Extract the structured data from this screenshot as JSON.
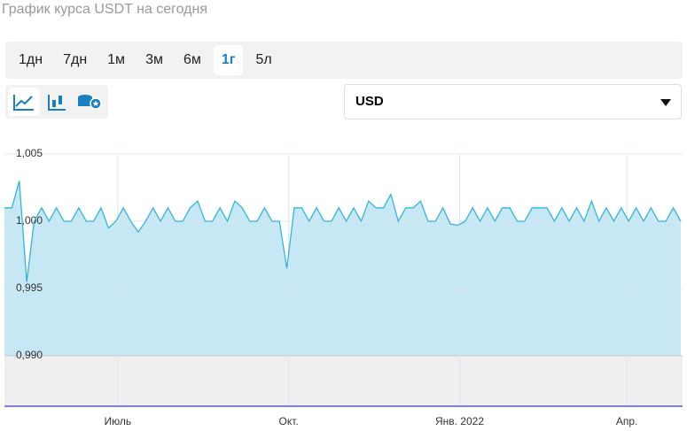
{
  "header": {
    "title": "График курса USDT на сегодня"
  },
  "periods": [
    "1дн",
    "7дн",
    "1м",
    "3м",
    "6м",
    "1г",
    "5л"
  ],
  "active_period": 5,
  "currency": "USD",
  "chart_data": {
    "type": "area",
    "x": [
      0,
      4,
      8,
      12,
      16,
      20,
      24,
      28,
      32,
      36,
      40,
      44,
      48,
      52,
      56,
      60,
      64,
      68,
      72,
      76,
      80,
      84,
      88,
      92,
      96,
      100,
      104,
      108,
      112,
      116,
      120,
      124,
      128,
      132,
      136,
      140,
      144,
      148,
      152,
      156,
      160,
      164,
      168,
      172,
      176,
      180,
      184,
      188,
      192,
      196,
      200,
      204,
      208,
      212,
      216,
      220,
      224,
      228,
      232,
      236,
      240,
      244,
      248,
      252,
      256,
      260,
      264,
      268,
      272,
      276,
      280,
      284,
      288,
      292,
      296,
      300,
      304,
      308,
      312,
      316,
      320,
      324,
      328,
      332,
      336,
      340,
      344,
      348,
      352,
      356,
      360,
      364
    ],
    "series": [
      {
        "name": "USDT",
        "color": "#35b6d6",
        "values": [
          1.001,
          1.001,
          1.003,
          0.9955,
          1.0,
          1.001,
          1.0,
          1.001,
          1.0,
          1.0,
          1.001,
          1.0,
          1.0,
          1.001,
          0.9995,
          1.0,
          1.001,
          1.0,
          0.9992,
          1.0,
          1.001,
          1.0,
          1.001,
          1.0,
          1.0,
          1.001,
          1.0015,
          1.0,
          1.0,
          1.001,
          1.0,
          1.0015,
          1.001,
          1.0,
          1.0,
          1.001,
          1.0,
          1.0,
          0.9965,
          1.001,
          1.001,
          1.0,
          1.001,
          1.0,
          1.0,
          1.001,
          1.0,
          1.001,
          1.0,
          1.0015,
          1.001,
          1.001,
          1.002,
          1.0,
          1.001,
          1.001,
          1.0015,
          1.0,
          1.0,
          1.001,
          0.9998,
          0.9997,
          1.0,
          1.001,
          1.0,
          1.001,
          1.0,
          1.001,
          1.001,
          1.0,
          1.0,
          1.001,
          1.001,
          1.001,
          1.0,
          1.001,
          1.0,
          1.001,
          1.0,
          1.0015,
          1.0,
          1.001,
          1.0,
          1.001,
          1.0,
          1.001,
          1.0,
          1.001,
          1.0,
          1.0,
          1.001,
          1.0
        ]
      }
    ],
    "xlim": [
      0,
      365
    ],
    "xticks": [
      {
        "value": 61,
        "label": "Июль"
      },
      {
        "value": 153,
        "label": "Окт."
      },
      {
        "value": 245,
        "label": "Янв. 2022"
      },
      {
        "value": 335,
        "label": "Апр."
      }
    ],
    "ylim": [
      0.99,
      1.005
    ],
    "yticks": [
      {
        "value": 0.99,
        "label": "0,990"
      },
      {
        "value": 0.995,
        "label": "0,995"
      },
      {
        "value": 1.0,
        "label": "1,000"
      },
      {
        "value": 1.005,
        "label": "1,005"
      }
    ],
    "fill": "#c6e7f4",
    "grid": true
  }
}
